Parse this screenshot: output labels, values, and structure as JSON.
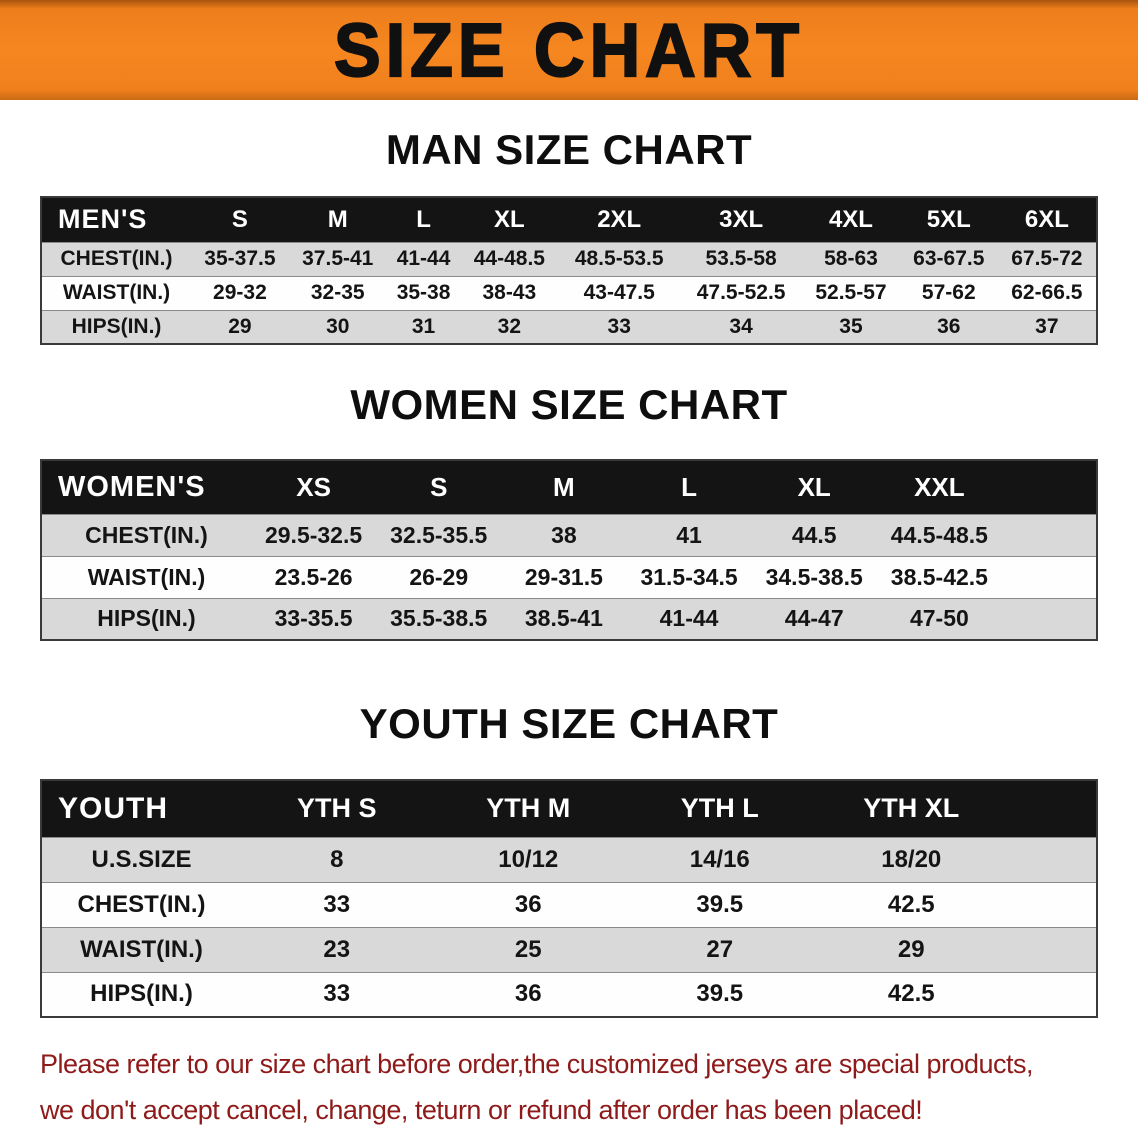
{
  "banner": {
    "title": "SIZE CHART"
  },
  "colors": {
    "banner_background": "#F5821F",
    "table_header_background": "#141414",
    "row_stripe": "#D9D9D9",
    "note_text": "#8E1A1A"
  },
  "chart_data": [
    {
      "type": "table",
      "title": "MAN SIZE CHART",
      "corner_label": "MEN'S",
      "columns": [
        "S",
        "M",
        "L",
        "XL",
        "2XL",
        "3XL",
        "4XL",
        "5XL",
        "6XL"
      ],
      "rows": [
        {
          "label": "CHEST(IN.)",
          "values": [
            "35-37.5",
            "37.5-41",
            "41-44",
            "44-48.5",
            "48.5-53.5",
            "53.5-58",
            "58-63",
            "63-67.5",
            "67.5-72"
          ]
        },
        {
          "label": "WAIST(IN.)",
          "values": [
            "29-32",
            "32-35",
            "35-38",
            "38-43",
            "43-47.5",
            "47.5-52.5",
            "52.5-57",
            "57-62",
            "62-66.5"
          ]
        },
        {
          "label": "HIPS(IN.)",
          "values": [
            "29",
            "30",
            "31",
            "32",
            "33",
            "34",
            "35",
            "36",
            "37"
          ]
        }
      ]
    },
    {
      "type": "table",
      "title": "WOMEN SIZE CHART",
      "corner_label": "WOMEN'S",
      "columns": [
        "XS",
        "S",
        "M",
        "L",
        "XL",
        "XXL"
      ],
      "rows": [
        {
          "label": "CHEST(IN.)",
          "values": [
            "29.5-32.5",
            "32.5-35.5",
            "38",
            "41",
            "44.5",
            "44.5-48.5"
          ]
        },
        {
          "label": "WAIST(IN.)",
          "values": [
            "23.5-26",
            "26-29",
            "29-31.5",
            "31.5-34.5",
            "34.5-38.5",
            "38.5-42.5"
          ]
        },
        {
          "label": "HIPS(IN.)",
          "values": [
            "33-35.5",
            "35.5-38.5",
            "38.5-41",
            "41-44",
            "44-47",
            "47-50"
          ]
        }
      ]
    },
    {
      "type": "table",
      "title": "YOUTH SIZE CHART",
      "corner_label": "YOUTH",
      "columns": [
        "YTH S",
        "YTH M",
        "YTH L",
        "YTH XL"
      ],
      "rows": [
        {
          "label": "U.S.SIZE",
          "values": [
            "8",
            "10/12",
            "14/16",
            "18/20"
          ]
        },
        {
          "label": "CHEST(IN.)",
          "values": [
            "33",
            "36",
            "39.5",
            "42.5"
          ]
        },
        {
          "label": "WAIST(IN.)",
          "values": [
            "23",
            "25",
            "27",
            "29"
          ]
        },
        {
          "label": "HIPS(IN.)",
          "values": [
            "33",
            "36",
            "39.5",
            "42.5"
          ]
        }
      ]
    }
  ],
  "footer": {
    "line1": "Please refer to our size chart before order,the customized jerseys are special products,",
    "line2": "we don't accept cancel, change, teturn or refund after order has been placed!"
  }
}
